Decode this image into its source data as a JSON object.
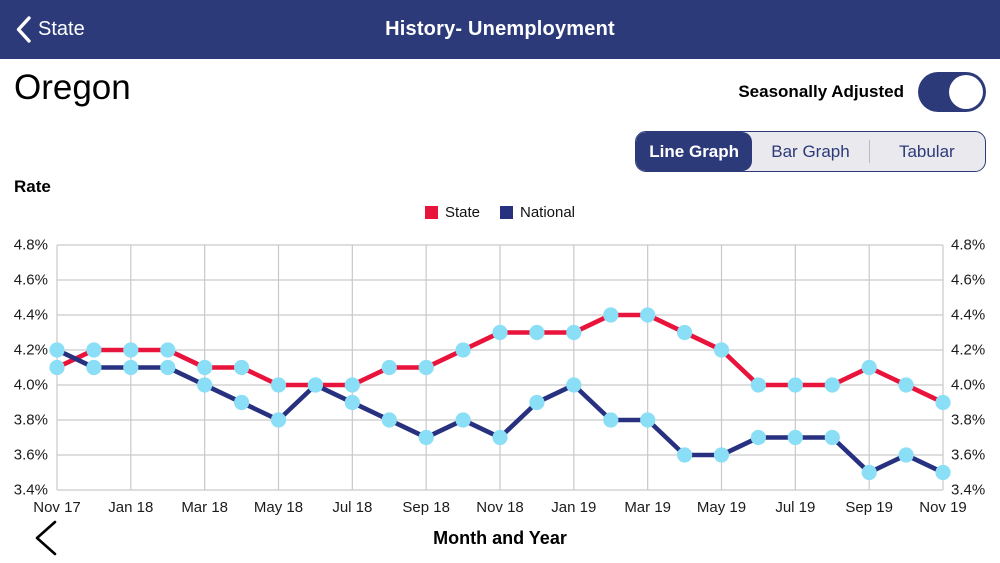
{
  "nav": {
    "back_label": "State",
    "title": "History- Unemployment"
  },
  "page": {
    "state_name": "Oregon",
    "toggle_label": "Seasonally Adjusted",
    "toggle_on": true
  },
  "view_tabs": [
    {
      "label": "Line Graph",
      "selected": true
    },
    {
      "label": "Bar Graph",
      "selected": false
    },
    {
      "label": "Tabular",
      "selected": false
    }
  ],
  "chart_data": {
    "type": "line",
    "ylabel": "Rate",
    "xlabel": "Month and Year",
    "categories": [
      "Nov 17",
      "Dec 17",
      "Jan 18",
      "Feb 18",
      "Mar 18",
      "Apr 18",
      "May 18",
      "Jun 18",
      "Jul 18",
      "Aug 18",
      "Sep 18",
      "Oct 18",
      "Nov 18",
      "Dec 18",
      "Jan 19",
      "Feb 19",
      "Mar 19",
      "Apr 19",
      "May 19",
      "Jun 19",
      "Jul 19",
      "Aug 19",
      "Sep 19",
      "Oct 19",
      "Nov 19"
    ],
    "x_tick_every": 2,
    "ylim": [
      3.4,
      4.8
    ],
    "ytick_step": 0.2,
    "ytick_suffix": "%",
    "grid": true,
    "legend_position": "top-center",
    "series": [
      {
        "name": "State",
        "color": "#e8143c",
        "values": [
          4.1,
          4.2,
          4.2,
          4.2,
          4.1,
          4.1,
          4.0,
          4.0,
          4.0,
          4.1,
          4.1,
          4.2,
          4.3,
          4.3,
          4.3,
          4.4,
          4.4,
          4.3,
          4.2,
          4.0,
          4.0,
          4.0,
          4.1,
          4.0,
          3.9
        ]
      },
      {
        "name": "National",
        "color": "#283180",
        "values": [
          4.2,
          4.1,
          4.1,
          4.1,
          4.0,
          3.9,
          3.8,
          4.0,
          3.9,
          3.8,
          3.7,
          3.8,
          3.7,
          3.9,
          4.0,
          3.8,
          3.8,
          3.6,
          3.6,
          3.7,
          3.7,
          3.7,
          3.5,
          3.6,
          3.5
        ]
      }
    ],
    "marker_color": "#8adef5",
    "grid_color": "#c9c9c9"
  }
}
